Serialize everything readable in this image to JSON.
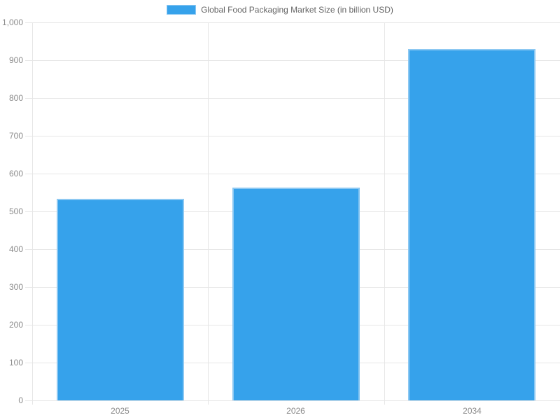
{
  "chart_data": {
    "type": "bar",
    "title": "",
    "series_name": "Global Food Packaging Market Size (in billion USD)",
    "categories": [
      "2025",
      "2026",
      "2034"
    ],
    "values": [
      533,
      563,
      930
    ],
    "xlabel": "",
    "ylabel": "",
    "ylim": [
      0,
      1000
    ],
    "ytick_step": 100,
    "ytick_labels": [
      "0",
      "100",
      "200",
      "300",
      "400",
      "500",
      "600",
      "700",
      "800",
      "900",
      "1,000"
    ],
    "grid": true,
    "legend_position": "top",
    "bar_color": "#36A2EB",
    "bar_border_color": "#8CC8F2",
    "grid_color": "#E6E6E6",
    "tick_text_color": "#8B8B8B",
    "legend_text_color": "#666666",
    "background_color": "#FFFFFF"
  }
}
